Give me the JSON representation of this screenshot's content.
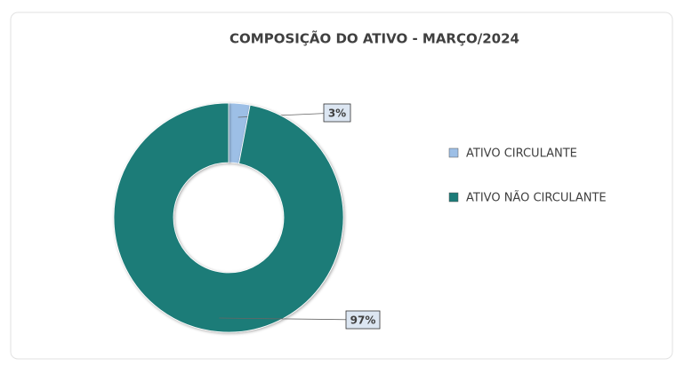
{
  "chart_data": {
    "type": "pie",
    "donut": true,
    "title": "COMPOSIÇÃO DO ATIVO - MARÇO/2024",
    "categories": [
      "ATIVO CIRCULANTE",
      "ATIVO NÃO CIRCULANTE"
    ],
    "values": [
      3,
      97
    ],
    "value_labels": [
      "3%",
      "97%"
    ],
    "colors": [
      "#9dbfe6",
      "#1b7b78"
    ],
    "legend": "right"
  }
}
